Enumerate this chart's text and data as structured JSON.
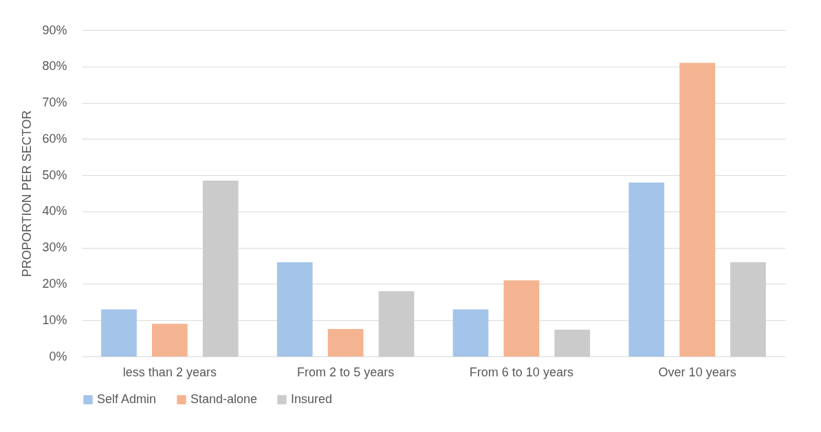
{
  "chart_data": {
    "type": "bar",
    "ylabel": "PROPORTION PER SECTOR",
    "categories": [
      "less than 2 years",
      "From 2 to 5 years",
      "From 6 to 10 years",
      "Over 10 years"
    ],
    "series": [
      {
        "name": "Self Admin",
        "color": "#a4c5e9",
        "values": [
          13,
          26,
          13,
          48
        ]
      },
      {
        "name": "Stand-alone",
        "color": "#f5b491",
        "values": [
          9,
          7.6,
          21,
          81
        ]
      },
      {
        "name": "Insured",
        "color": "#cbcbcb",
        "values": [
          48.5,
          18,
          7.4,
          26
        ]
      }
    ],
    "ylim": [
      0,
      90
    ],
    "yticks": [
      {
        "value": 0,
        "label": "0%"
      },
      {
        "value": 10,
        "label": "10%"
      },
      {
        "value": 20,
        "label": "20%"
      },
      {
        "value": 30,
        "label": "30%"
      },
      {
        "value": 40,
        "label": "40%"
      },
      {
        "value": 50,
        "label": "50%"
      },
      {
        "value": 60,
        "label": "60%"
      },
      {
        "value": 70,
        "label": "70%"
      },
      {
        "value": 80,
        "label": "80%"
      },
      {
        "value": 90,
        "label": "90%"
      }
    ],
    "grid": "y",
    "legend": "bottom"
  }
}
